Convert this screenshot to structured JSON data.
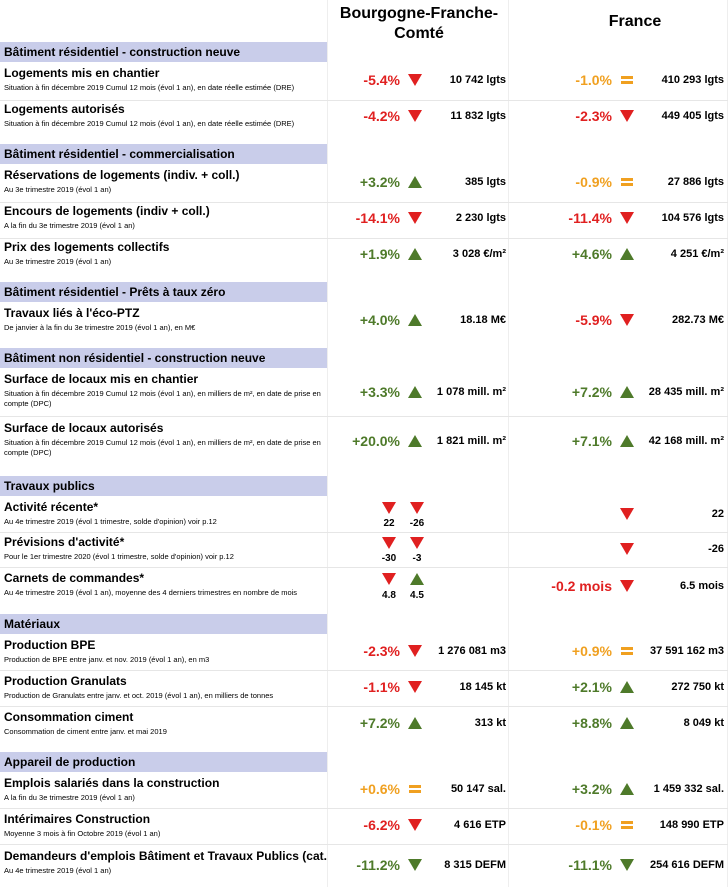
{
  "header": {
    "region": "Bourgogne-Franche-Comté",
    "france": "France"
  },
  "colors": {
    "negative": "#e02020",
    "positive": "#4e7a2a",
    "neutral": "#f0a020",
    "section_bg": "#c9cdea"
  },
  "sections": {
    "res_new": "Bâtiment résidentiel - construction neuve",
    "res_com": "Bâtiment résidentiel - commercialisation",
    "res_ptz": "Bâtiment résidentiel - Prêts à taux zéro",
    "nonres": "Bâtiment non résidentiel - construction neuve",
    "tp": "Travaux publics",
    "mat": "Matériaux",
    "prod": "Appareil de production"
  },
  "rows": {
    "log_chantier": {
      "title": "Logements mis en chantier",
      "sub": "Situation à fin décembre 2019 Cumul 12 mois (évol 1 an), en date réelle estimée (DRE)",
      "r_pct": "-5.4%",
      "r_val": "10 742 lgts",
      "f_pct": "-1.0%",
      "f_val": "410 293 lgts"
    },
    "log_autorises": {
      "title": "Logements autorisés",
      "sub": "Situation à fin décembre 2019 Cumul 12 mois (évol 1 an), en date réelle estimée (DRE)",
      "r_pct": "-4.2%",
      "r_val": "11 832 lgts",
      "f_pct": "-2.3%",
      "f_val": "449 405 lgts"
    },
    "reservations": {
      "title": "Réservations de logements (indiv. + coll.)",
      "sub": "Au 3e trimestre 2019 (évol 1 an)",
      "r_pct": "+3.2%",
      "r_val": "385 lgts",
      "f_pct": "-0.9%",
      "f_val": "27 886 lgts"
    },
    "encours": {
      "title": "Encours de logements (indiv + coll.)",
      "sub": "A la fin du 3e trimestre 2019 (évol 1 an)",
      "r_pct": "-14.1%",
      "r_val": "2 230 lgts",
      "f_pct": "-11.4%",
      "f_val": "104 576 lgts"
    },
    "prix": {
      "title": "Prix des logements collectifs",
      "sub": "Au 3e trimestre 2019 (évol 1 an)",
      "r_pct": "+1.9%",
      "r_val": "3 028 €/m²",
      "f_pct": "+4.6%",
      "f_val": "4 251 €/m²"
    },
    "ecoptz": {
      "title": "Travaux liés à l'éco-PTZ",
      "sub": "De janvier à la fin du 3e trimestre 2019 (évol 1 an), en M€",
      "r_pct": "+4.0%",
      "r_val": "18.18 M€",
      "f_pct": "-5.9%",
      "f_val": "282.73 M€"
    },
    "locaux_chantier": {
      "title": "Surface de locaux mis en chantier",
      "sub": "Situation à fin décembre 2019 Cumul 12 mois (évol 1 an), en milliers de m², en date de prise en compte (DPC)",
      "r_pct": "+3.3%",
      "r_val": "1 078 mill. m²",
      "f_pct": "+7.2%",
      "f_val": "28 435 mill. m²"
    },
    "locaux_autorises": {
      "title": "Surface de locaux autorisés",
      "sub": "Situation à fin décembre 2019 Cumul 12 mois (évol 1 an), en milliers de m², en date de prise en compte (DPC)",
      "r_pct": "+20.0%",
      "r_val": "1 821 mill. m²",
      "f_pct": "+7.1%",
      "f_val": "42 168 mill. m²"
    },
    "activite": {
      "title": "Activité récente*",
      "sub": "Au 4e trimestre 2019 (évol 1 trimestre, solde d'opinion) voir p.12",
      "r_a": "22",
      "r_b": "-26",
      "f_val": "22"
    },
    "previsions": {
      "title": "Prévisions d'activité*",
      "sub": "Pour le 1er trimestre 2020 (évol 1 trimestre, solde d'opinion) voir p.12",
      "r_a": "-30",
      "r_b": "-3",
      "f_val": "-26"
    },
    "carnets": {
      "title": "Carnets de commandes*",
      "sub": "Au 4e trimestre 2019 (évol 1 an), moyenne des 4 derniers trimestres en nombre de mois",
      "r_a": "4.8",
      "r_b": "4.5",
      "f_pct": "-0.2 mois",
      "f_val": "6.5 mois"
    },
    "bpe": {
      "title": "Production BPE",
      "sub": "Production de BPE entre janv. et nov. 2019 (évol 1 an), en m3",
      "r_pct": "-2.3%",
      "r_val": "1 276 081 m3",
      "f_pct": "+0.9%",
      "f_val": "37 591 162 m3"
    },
    "granulats": {
      "title": "Production Granulats",
      "sub": "Production de Granulats entre janv. et oct. 2019 (évol 1 an), en milliers de tonnes",
      "r_pct": "-1.1%",
      "r_val": "18 145 kt",
      "f_pct": "+2.1%",
      "f_val": "272 750 kt"
    },
    "ciment": {
      "title": "Consommation ciment",
      "sub": "Consommation de ciment entre janv. et mai 2019",
      "r_pct": "+7.2%",
      "r_val": "313 kt",
      "f_pct": "+8.8%",
      "f_val": "8 049 kt"
    },
    "emplois": {
      "title": "Emplois salariés dans la construction",
      "sub": "A la fin du 3e trimestre 2019 (évol 1 an)",
      "r_pct": "+0.6%",
      "r_val": "50 147 sal.",
      "f_pct": "+3.2%",
      "f_val": "1 459 332 sal."
    },
    "interim": {
      "title": "Intérimaires Construction",
      "sub": "Moyenne 3 mois à fin Octobre 2019 (évol 1 an)",
      "r_pct": "-6.2%",
      "r_val": "4 616 ETP",
      "f_pct": "-0.1%",
      "f_val": "148 990 ETP"
    },
    "demandeurs": {
      "title": "Demandeurs d'emplois Bâtiment et Travaux Publics (cat.",
      "sub": "Au 4e trimestre 2019 (évol 1 an)",
      "r_pct": "-11.2%",
      "r_val": "8 315 DEFM",
      "f_pct": "-11.1%",
      "f_val": "254 616 DEFM"
    }
  }
}
